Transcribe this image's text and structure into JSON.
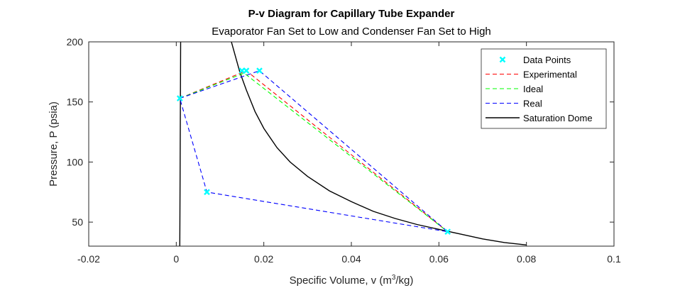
{
  "chart_data": {
    "type": "line",
    "title": "P-v Diagram for Capillary Tube Expander",
    "subtitle": "Evaporator Fan Set to Low and Condenser Fan Set to High",
    "xlabel": {
      "main": "Specific Volume, v (m",
      "sup": "3",
      "end": "/kg)"
    },
    "ylabel": "Pressure, P (psia)",
    "xlim": [
      -0.02,
      0.1
    ],
    "ylim": [
      30,
      200
    ],
    "xticks": [
      -0.02,
      0,
      0.02,
      0.04,
      0.06,
      0.08,
      0.1
    ],
    "xtick_labels": [
      "-0.02",
      "0",
      "0.02",
      "0.04",
      "0.06",
      "0.08",
      "0.1"
    ],
    "yticks": [
      50,
      100,
      150,
      200
    ],
    "ytick_labels": [
      "50",
      "100",
      "150",
      "200"
    ],
    "grid": false,
    "legend_position": "top-right",
    "series": [
      {
        "name": "Data Points",
        "style": "marker-x",
        "color": "#00ffff",
        "x": [
          0.0008,
          0.015,
          0.016,
          0.019,
          0.062,
          0.007
        ],
        "y": [
          153,
          176,
          176,
          176,
          42,
          75
        ]
      },
      {
        "name": "Experimental",
        "style": "dashed",
        "color": "#ff0000",
        "x": [
          0.0008,
          0.016,
          0.062
        ],
        "y": [
          153,
          176,
          42
        ]
      },
      {
        "name": "Ideal",
        "style": "dashed",
        "color": "#00ff00",
        "x": [
          0.0008,
          0.0155,
          0.062
        ],
        "y": [
          153,
          174,
          42
        ]
      },
      {
        "name": "Real",
        "style": "dashed",
        "color": "#0000ff",
        "x": [
          0.0008,
          0.019,
          0.062,
          0.007,
          0.0008
        ],
        "y": [
          153,
          176,
          42,
          75,
          153
        ]
      },
      {
        "name": "Saturation Dome",
        "style": "solid",
        "color": "#000000",
        "x": [
          0.0008,
          0.0009,
          0.001
        ],
        "y": [
          30,
          115,
          200
        ],
        "x2": [
          0.0126,
          0.0145,
          0.016,
          0.018,
          0.02,
          0.023,
          0.026,
          0.03,
          0.035,
          0.04,
          0.045,
          0.05,
          0.055,
          0.06,
          0.065,
          0.07,
          0.075,
          0.08
        ],
        "y2": [
          200,
          175,
          160,
          142,
          128,
          112,
          100,
          88,
          76,
          67,
          59,
          53,
          48,
          44,
          40,
          36,
          33,
          31
        ]
      }
    ]
  }
}
